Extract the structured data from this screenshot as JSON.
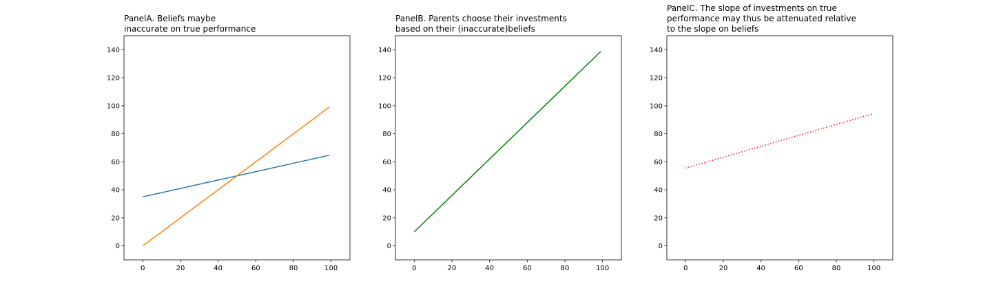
{
  "chart_data": [
    {
      "type": "line",
      "title_lines": [
        "PanelA. Beliefs maybe",
        "inaccurate on true performance"
      ],
      "xlim": [
        -10,
        110
      ],
      "ylim": [
        -10,
        150
      ],
      "xticks": [
        0,
        20,
        40,
        60,
        80,
        100
      ],
      "yticks": [
        0,
        20,
        40,
        60,
        80,
        100,
        120,
        140
      ],
      "series": [
        {
          "x": [
            0,
            99
          ],
          "y": [
            35,
            64.7
          ],
          "color": "#1f77b4",
          "style": "solid"
        },
        {
          "x": [
            0,
            99
          ],
          "y": [
            0,
            99
          ],
          "color": "#ff7f0e",
          "style": "solid"
        }
      ]
    },
    {
      "type": "line",
      "title_lines": [
        "PanelB. Parents choose their investments",
        "based on their (inaccurate)beliefs"
      ],
      "xlim": [
        -10,
        110
      ],
      "ylim": [
        -10,
        150
      ],
      "xticks": [
        0,
        20,
        40,
        60,
        80,
        100
      ],
      "yticks": [
        0,
        20,
        40,
        60,
        80,
        100,
        120,
        140
      ],
      "series": [
        {
          "x": [
            0,
            99
          ],
          "y": [
            10,
            138.7
          ],
          "color": "#008000",
          "style": "solid"
        }
      ]
    },
    {
      "type": "line",
      "title_lines": [
        "PanelC. The slope of investments on true",
        "performance may thus be attenuated relative",
        "to the slope on beliefs"
      ],
      "xlim": [
        -10,
        110
      ],
      "ylim": [
        -10,
        150
      ],
      "xticks": [
        0,
        20,
        40,
        60,
        80,
        100
      ],
      "yticks": [
        0,
        20,
        40,
        60,
        80,
        100,
        120,
        140
      ],
      "series": [
        {
          "x": [
            0,
            99
          ],
          "y": [
            55.5,
            94.1
          ],
          "color": "#ff0000",
          "style": "dotted"
        }
      ]
    }
  ]
}
